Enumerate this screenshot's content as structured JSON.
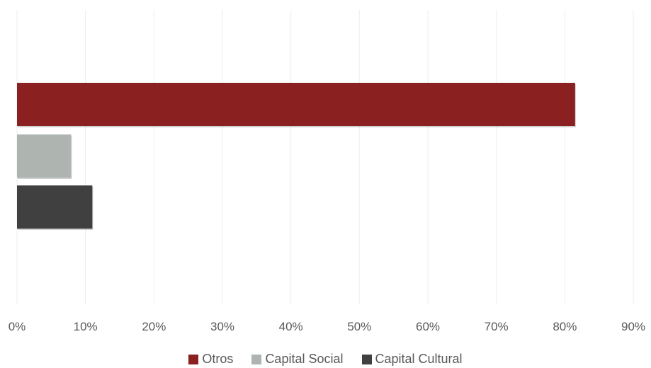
{
  "chart_data": {
    "type": "bar",
    "orientation": "horizontal",
    "title": "",
    "xlabel": "",
    "ylabel": "",
    "xlim": [
      0,
      90
    ],
    "x_ticks": [
      "0%",
      "10%",
      "20%",
      "30%",
      "40%",
      "50%",
      "60%",
      "70%",
      "80%",
      "90%"
    ],
    "grid": true,
    "legend_position": "bottom",
    "series": [
      {
        "name": "Otros",
        "value": 81.5,
        "color": "#8B2020"
      },
      {
        "name": "Capital Social",
        "value": 7.9,
        "color": "#AEB5B0"
      },
      {
        "name": "Capital Cultural",
        "value": 11.0,
        "color": "#404040"
      }
    ]
  }
}
